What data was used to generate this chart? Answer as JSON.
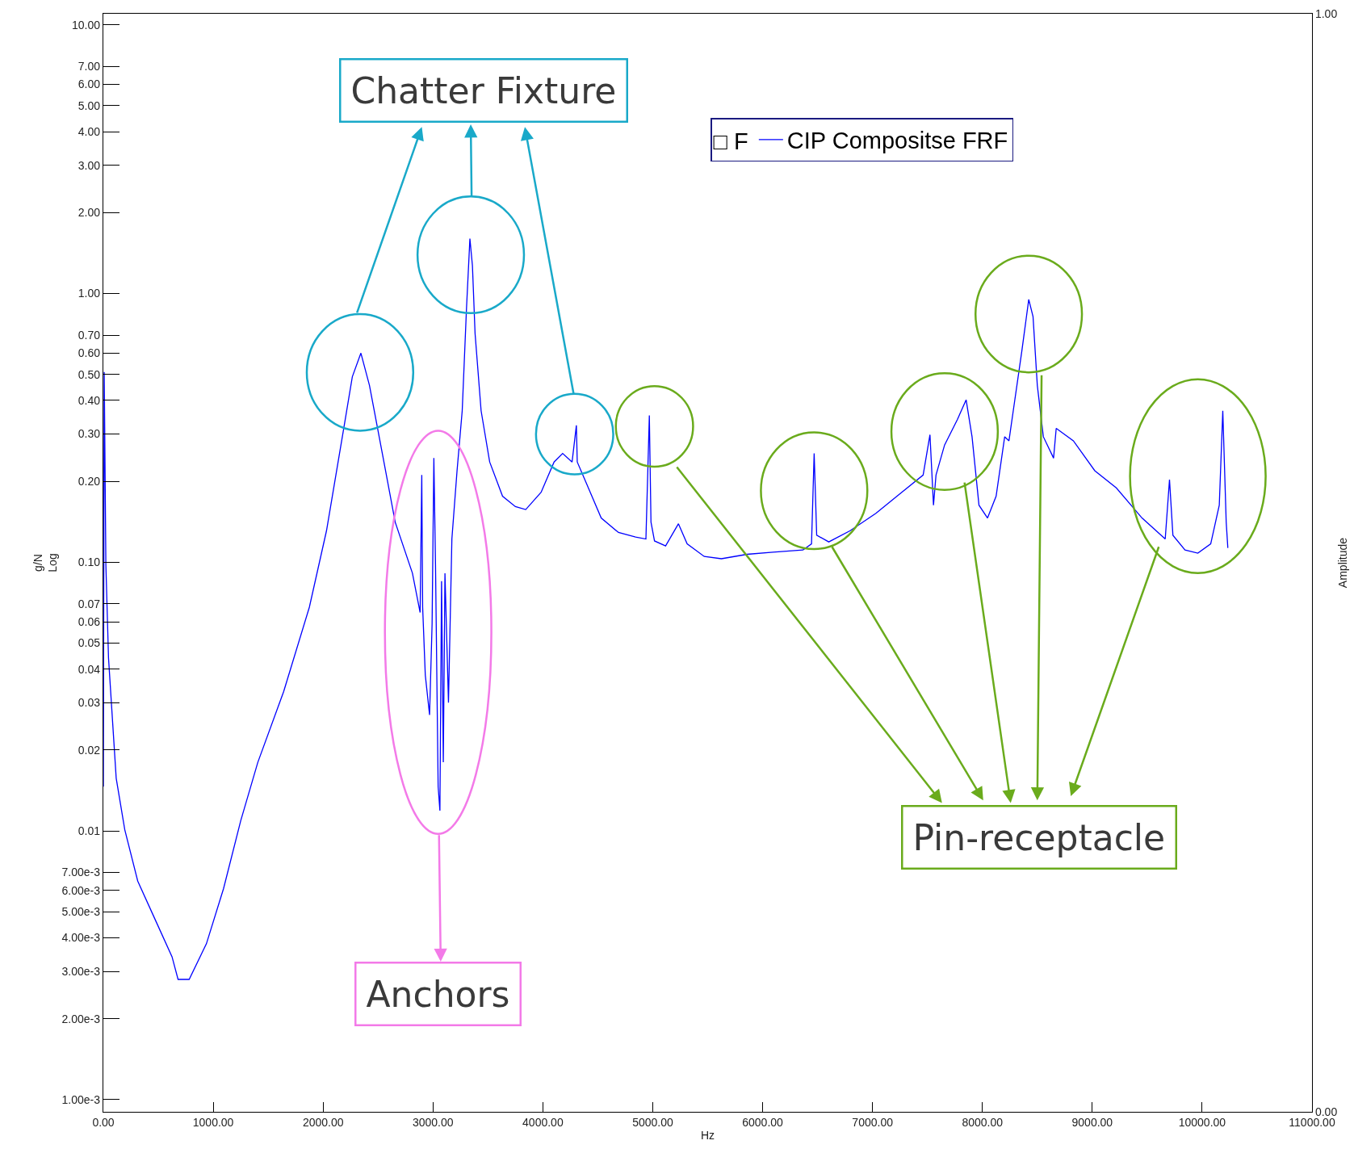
{
  "chart_data": {
    "type": "line",
    "xlabel": "Hz",
    "ylabel": "g/N\nLog",
    "y2label": "Amplitude",
    "legend_title": "□ F",
    "annotations": [
      "Chatter Fixture",
      "Anchors",
      "Pin-receptacle"
    ],
    "x": [
      0,
      8,
      23,
      47,
      117,
      195,
      313,
      469,
      625,
      680,
      781,
      938,
      1094,
      1250,
      1406,
      1641,
      1875,
      2031,
      2188,
      2266,
      2344,
      2422,
      2539,
      2656,
      2813,
      2883,
      2898,
      2906,
      2930,
      2969,
      2992,
      3008,
      3023,
      3047,
      3063,
      3078,
      3094,
      3109,
      3141,
      3172,
      3219,
      3266,
      3305,
      3336,
      3359,
      3383,
      3438,
      3516,
      3633,
      3750,
      3844,
      3984,
      4102,
      4180,
      4266,
      4305,
      4313,
      4414,
      4531,
      4688,
      4844,
      4938,
      4969,
      4984,
      5016,
      5117,
      5234,
      5313,
      5469,
      5625,
      5859,
      6094,
      6367,
      6445,
      6469,
      6492,
      6602,
      6797,
      7031,
      7266,
      7461,
      7523,
      7555,
      7578,
      7656,
      7773,
      7852,
      7906,
      7969,
      8047,
      8125,
      8203,
      8242,
      8281,
      8359,
      8422,
      8461,
      8500,
      8555,
      8648,
      8672,
      8828,
      9023,
      9219,
      9453,
      9664,
      9703,
      9734,
      9844,
      9961,
      10078,
      10156,
      10188,
      10219,
      10234
    ],
    "series": [
      {
        "name": "CIP Compositse FRF",
        "color": "#0000ff",
        "values": [
          0.0146,
          0.51,
          0.098,
          0.044,
          0.0157,
          0.0101,
          0.0065,
          0.0047,
          0.0034,
          0.0028,
          0.0028,
          0.0038,
          0.0061,
          0.0109,
          0.018,
          0.033,
          0.068,
          0.131,
          0.315,
          0.49,
          0.6,
          0.455,
          0.254,
          0.141,
          0.091,
          0.065,
          0.211,
          0.068,
          0.038,
          0.027,
          0.059,
          0.244,
          0.098,
          0.0146,
          0.0119,
          0.085,
          0.018,
          0.091,
          0.03,
          0.122,
          0.219,
          0.366,
          0.88,
          1.6,
          1.27,
          0.71,
          0.366,
          0.236,
          0.176,
          0.161,
          0.157,
          0.182,
          0.236,
          0.254,
          0.236,
          0.323,
          0.236,
          0.189,
          0.146,
          0.129,
          0.124,
          0.122,
          0.352,
          0.141,
          0.12,
          0.115,
          0.139,
          0.117,
          0.105,
          0.103,
          0.107,
          0.109,
          0.111,
          0.117,
          0.254,
          0.126,
          0.119,
          0.131,
          0.152,
          0.182,
          0.211,
          0.298,
          0.163,
          0.211,
          0.273,
          0.34,
          0.402,
          0.293,
          0.163,
          0.146,
          0.176,
          0.293,
          0.283,
          0.366,
          0.61,
          0.95,
          0.82,
          0.455,
          0.293,
          0.244,
          0.315,
          0.283,
          0.219,
          0.189,
          0.146,
          0.122,
          0.203,
          0.126,
          0.111,
          0.108,
          0.117,
          0.163,
          0.366,
          0.141,
          0.113
        ]
      }
    ],
    "log": "y",
    "grid": false,
    "legend": "top right",
    "marker": "none",
    "line_style": "solid",
    "xlim": [
      0,
      11000
    ],
    "xticks": [
      {
        "value": 0,
        "label": "0.00"
      },
      {
        "value": 1000,
        "label": "1000.00"
      },
      {
        "value": 2000,
        "label": "2000.00"
      },
      {
        "value": 3000,
        "label": "3000.00"
      },
      {
        "value": 4000,
        "label": "4000.00"
      },
      {
        "value": 5000,
        "label": "5000.00"
      },
      {
        "value": 6000,
        "label": "6000.00"
      },
      {
        "value": 7000,
        "label": "7000.00"
      },
      {
        "value": 8000,
        "label": "8000.00"
      },
      {
        "value": 9000,
        "label": "9000.00"
      },
      {
        "value": 10000,
        "label": "10000.00"
      },
      {
        "value": 11000,
        "label": "11000.00"
      }
    ],
    "ylim": [
      0.0009,
      11
    ],
    "yticks": [
      {
        "value": 10,
        "label": "10.00"
      },
      {
        "value": 7,
        "label": "7.00"
      },
      {
        "value": 6,
        "label": "6.00"
      },
      {
        "value": 5,
        "label": "5.00"
      },
      {
        "value": 4,
        "label": "4.00"
      },
      {
        "value": 3,
        "label": "3.00"
      },
      {
        "value": 2,
        "label": "2.00"
      },
      {
        "value": 1,
        "label": "1.00"
      },
      {
        "value": 0.7,
        "label": "0.70"
      },
      {
        "value": 0.6,
        "label": "0.60"
      },
      {
        "value": 0.5,
        "label": "0.50"
      },
      {
        "value": 0.4,
        "label": "0.40"
      },
      {
        "value": 0.3,
        "label": "0.30"
      },
      {
        "value": 0.2,
        "label": "0.20"
      },
      {
        "value": 0.1,
        "label": "0.10"
      },
      {
        "value": 0.07,
        "label": "0.07"
      },
      {
        "value": 0.06,
        "label": "0.06"
      },
      {
        "value": 0.05,
        "label": "0.05"
      },
      {
        "value": 0.04,
        "label": "0.04"
      },
      {
        "value": 0.03,
        "label": "0.03"
      },
      {
        "value": 0.02,
        "label": "0.02"
      },
      {
        "value": 0.01,
        "label": "0.01"
      },
      {
        "value": 0.007,
        "label": "7.00e-3"
      },
      {
        "value": 0.006,
        "label": "6.00e-3"
      },
      {
        "value": 0.005,
        "label": "5.00e-3"
      },
      {
        "value": 0.004,
        "label": "4.00e-3"
      },
      {
        "value": 0.003,
        "label": "3.00e-3"
      },
      {
        "value": 0.002,
        "label": "2.00e-3"
      },
      {
        "value": 0.001,
        "label": "1.00e-3"
      }
    ],
    "y2lim": [
      0,
      1
    ],
    "y2ticks": [
      {
        "value": 0,
        "label": "0.00"
      },
      {
        "value": 1,
        "label": "1.00"
      }
    ]
  }
}
